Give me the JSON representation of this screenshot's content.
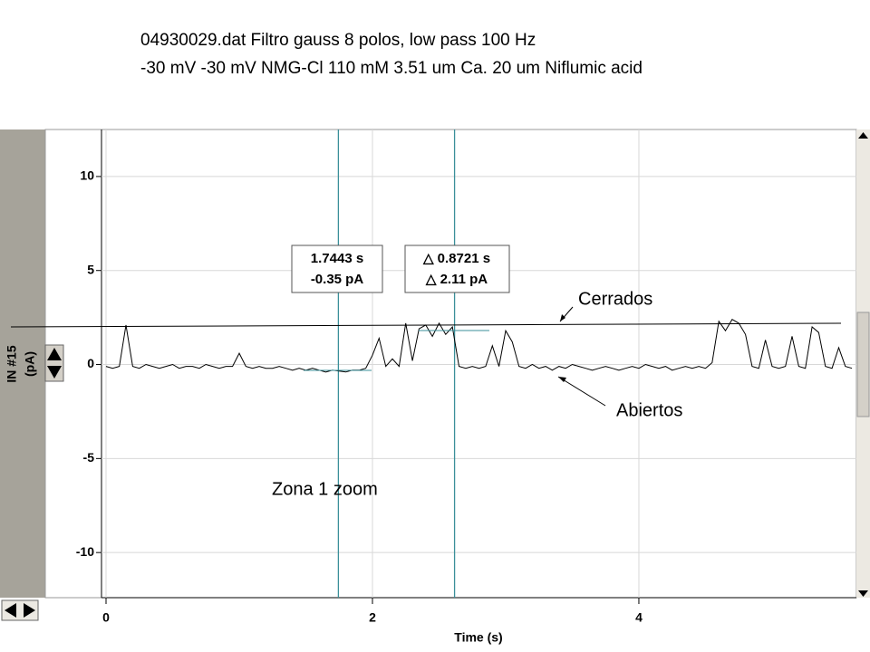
{
  "chart_data": {
    "type": "line",
    "title": "04930029.dat Filtro gauss 8 polos, low pass 100 Hz",
    "subtitle": "-30 mV -30 mV NMG-Cl 110 mM 3.51 um Ca. 20 um Niflumic acid",
    "x_label": "Time (s)",
    "y_label": "IN #15",
    "y_unit": "(pA)",
    "xlim": [
      -0.034,
      5.633
    ],
    "ylim": [
      -12.4,
      12.5
    ],
    "xticks": [
      0,
      2,
      4
    ],
    "yticks": [
      10,
      5,
      0,
      -5,
      -10
    ],
    "grid": true,
    "color": "#000000",
    "cursor_color": "#3a8f99",
    "cursors": [
      1.7443,
      2.6164
    ],
    "cursor_readouts": [
      [
        "1.7443 s",
        "-0.35 pA"
      ],
      [
        "△ 0.8721 s",
        "△ 2.11 pA"
      ]
    ],
    "annotations": [
      "Cerrados",
      "Abiertos",
      "Zona 1 zoom"
    ],
    "x": [
      0,
      0.05,
      0.1,
      0.15,
      0.2,
      0.25,
      0.3,
      0.35,
      0.4,
      0.45,
      0.5,
      0.55,
      0.6,
      0.65,
      0.7,
      0.75,
      0.8,
      0.85,
      0.9,
      0.95,
      1,
      1.05,
      1.1,
      1.15,
      1.2,
      1.25,
      1.3,
      1.35,
      1.4,
      1.45,
      1.5,
      1.55,
      1.6,
      1.65,
      1.7,
      1.75,
      1.8,
      1.85,
      1.9,
      1.95,
      2,
      2.05,
      2.1,
      2.15,
      2.2,
      2.25,
      2.3,
      2.35,
      2.4,
      2.45,
      2.5,
      2.55,
      2.6,
      2.65,
      2.7,
      2.75,
      2.8,
      2.85,
      2.9,
      2.95,
      3,
      3.05,
      3.1,
      3.15,
      3.2,
      3.25,
      3.3,
      3.35,
      3.4,
      3.45,
      3.5,
      3.55,
      3.6,
      3.65,
      3.7,
      3.75,
      3.8,
      3.85,
      3.9,
      3.95,
      4,
      4.05,
      4.1,
      4.15,
      4.2,
      4.25,
      4.3,
      4.35,
      4.4,
      4.45,
      4.5,
      4.55,
      4.6,
      4.65,
      4.7,
      4.75,
      4.8,
      4.85,
      4.9,
      4.95,
      5,
      5.05,
      5.1,
      5.15,
      5.2,
      5.25,
      5.3,
      5.35,
      5.4,
      5.45,
      5.5,
      5.55,
      5.6
    ],
    "values": [
      -0.1,
      -0.2,
      -0.1,
      2.1,
      -0.1,
      -0.2,
      0.0,
      -0.1,
      -0.2,
      -0.1,
      0.0,
      -0.2,
      -0.1,
      -0.1,
      -0.2,
      0.0,
      -0.1,
      -0.2,
      -0.1,
      -0.1,
      0.6,
      -0.1,
      -0.2,
      -0.1,
      -0.2,
      -0.2,
      -0.1,
      -0.2,
      -0.3,
      -0.2,
      -0.3,
      -0.2,
      -0.3,
      -0.4,
      -0.3,
      -0.35,
      -0.4,
      -0.3,
      -0.3,
      -0.2,
      0.5,
      1.4,
      -0.1,
      0.3,
      -0.1,
      2.2,
      0.2,
      1.9,
      2.1,
      1.5,
      2.2,
      1.6,
      2.0,
      -0.1,
      -0.2,
      -0.1,
      -0.2,
      -0.1,
      1.0,
      -0.1,
      1.8,
      1.2,
      -0.1,
      -0.2,
      0.0,
      -0.2,
      -0.1,
      -0.3,
      -0.1,
      -0.2,
      0.0,
      -0.1,
      -0.2,
      -0.3,
      -0.2,
      -0.1,
      -0.2,
      -0.3,
      -0.2,
      -0.1,
      -0.2,
      0.0,
      -0.1,
      -0.2,
      -0.1,
      -0.3,
      -0.2,
      -0.1,
      -0.2,
      -0.1,
      -0.2,
      0.1,
      2.3,
      1.8,
      2.4,
      2.2,
      1.6,
      -0.1,
      -0.2,
      1.3,
      -0.1,
      -0.2,
      -0.1,
      1.5,
      -0.1,
      -0.2,
      2.0,
      1.7,
      -0.1,
      -0.2,
      0.9,
      -0.1,
      -0.2
    ]
  }
}
